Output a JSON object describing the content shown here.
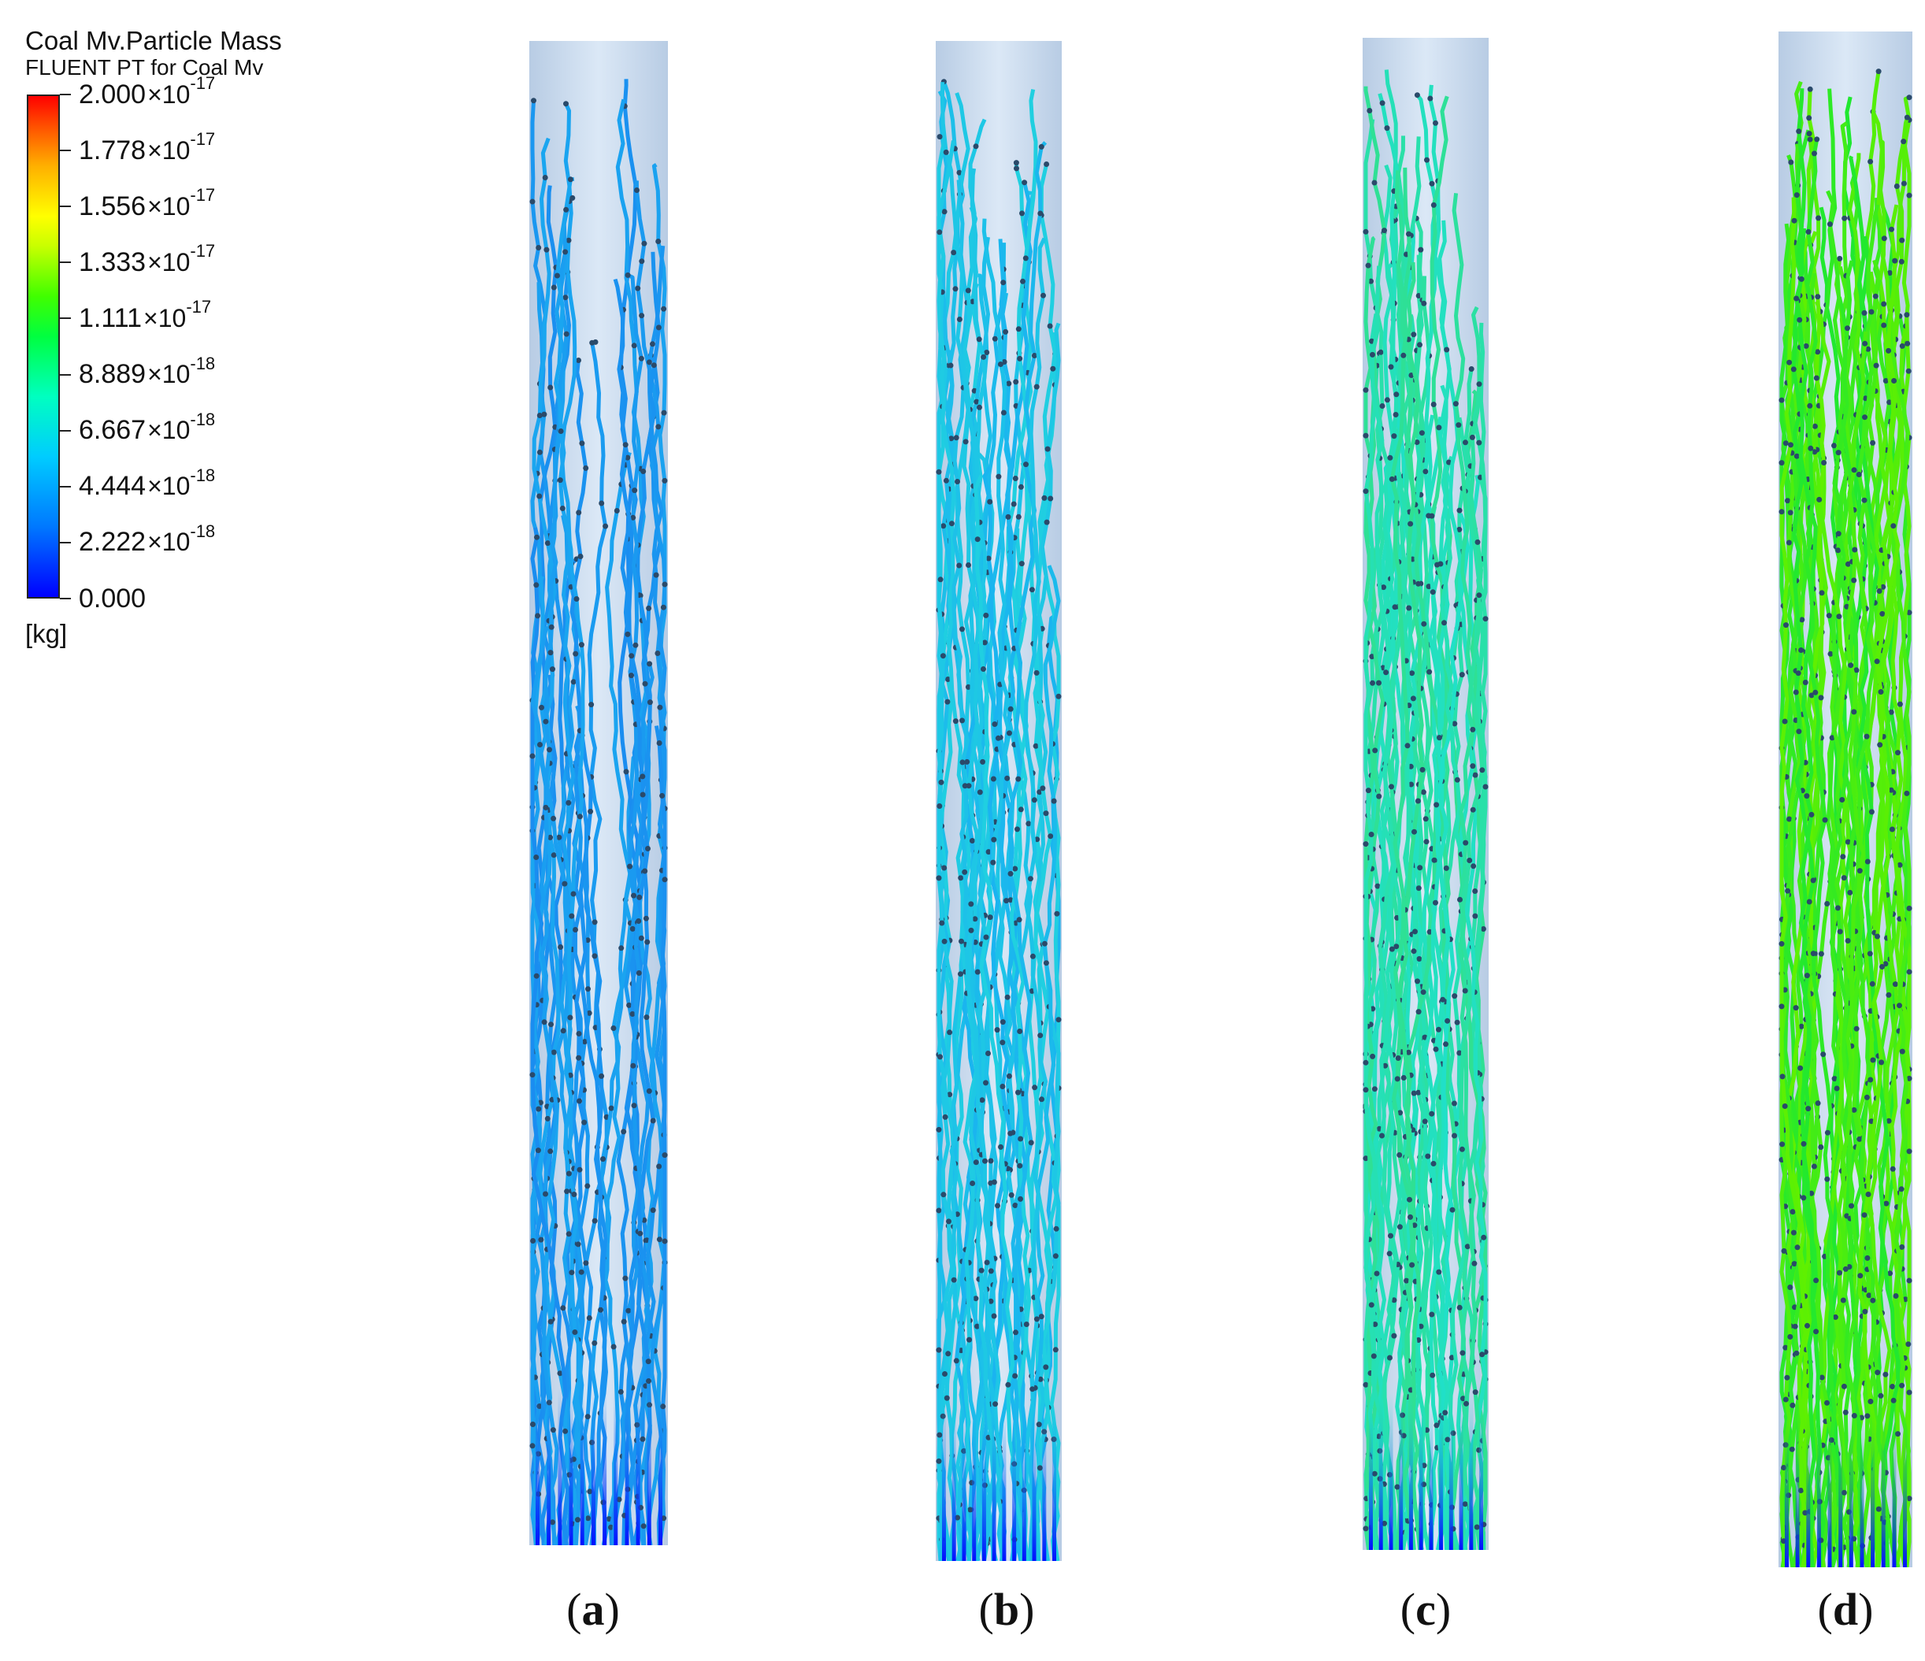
{
  "legend": {
    "title": "Coal Mv.Particle Mass",
    "subtitle": "FLUENT PT for Coal Mv",
    "unit": "[kg]",
    "ticks": [
      {
        "mantissa": "2.000",
        "times": "×",
        "base": "10",
        "exponent": "-17"
      },
      {
        "mantissa": "1.778",
        "times": "×",
        "base": "10",
        "exponent": "-17"
      },
      {
        "mantissa": "1.556",
        "times": "×",
        "base": "10",
        "exponent": "-17"
      },
      {
        "mantissa": "1.333",
        "times": "×",
        "base": "10",
        "exponent": "-17"
      },
      {
        "mantissa": "1.111",
        "times": " ×",
        "base": "10",
        "exponent": "-17"
      },
      {
        "mantissa": "8.889",
        "times": "×",
        "base": "10",
        "exponent": "-18"
      },
      {
        "mantissa": "6.667",
        "times": "×",
        "base": "10",
        "exponent": "-18"
      },
      {
        "mantissa": "4.444",
        "times": "×",
        "base": "10",
        "exponent": "-18"
      },
      {
        "mantissa": "2.222",
        "times": "×",
        "base": "10",
        "exponent": "-18"
      },
      {
        "mantissa": "0.000",
        "times": "",
        "base": "",
        "exponent": ""
      }
    ],
    "colormap": [
      "#0000ff",
      "#00ccff",
      "#00ff40",
      "#ffff00",
      "#ff0000"
    ]
  },
  "panels": [
    {
      "label_open": "(",
      "label_letter": "a",
      "label_close": ")",
      "dominant_color": "#1a8cf0",
      "top_color": "#1aa8f0"
    },
    {
      "label_open": "(",
      "label_letter": "b",
      "label_close": ")",
      "dominant_color": "#1ab4f0",
      "top_color": "#20d0e0"
    },
    {
      "label_open": "(",
      "label_letter": "c",
      "label_close": ")",
      "dominant_color": "#20e0c8",
      "top_color": "#30e090"
    },
    {
      "label_open": "(",
      "label_letter": "d",
      "label_close": ")",
      "dominant_color": "#20e830",
      "top_color": "#60f000"
    }
  ]
}
